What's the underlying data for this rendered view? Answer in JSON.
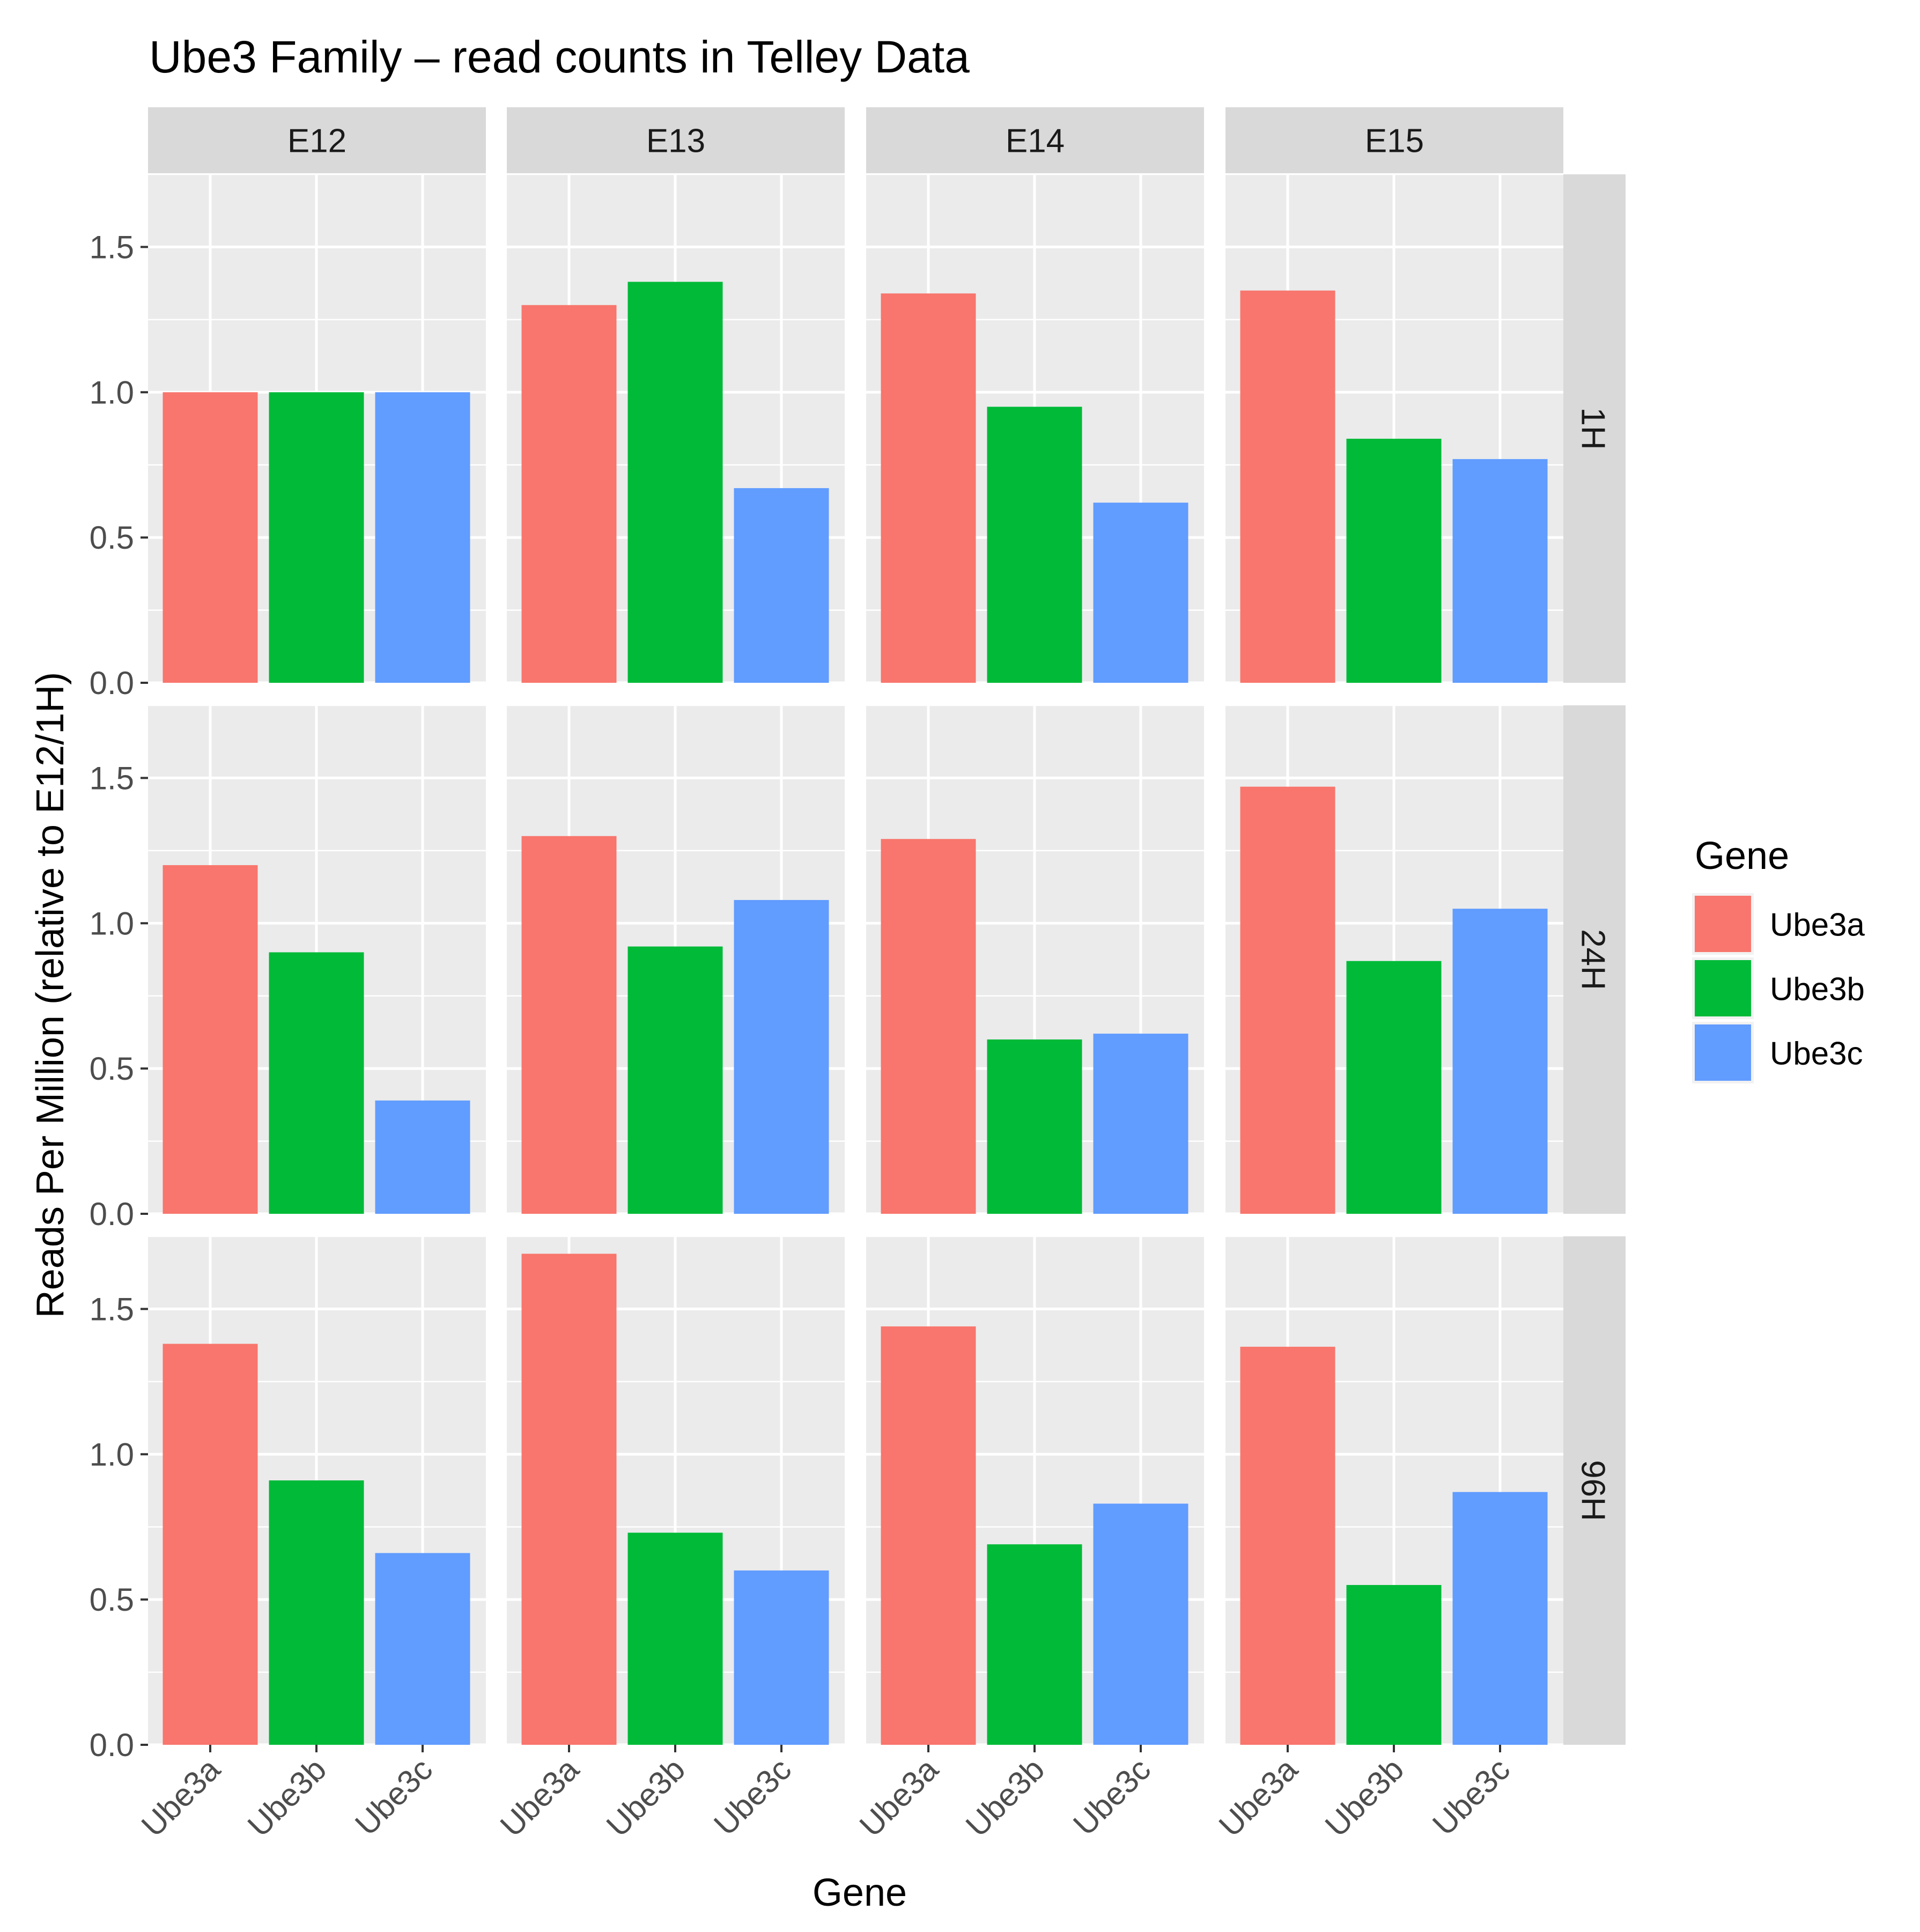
{
  "chart_data": {
    "type": "bar",
    "title": "Ube3 Family – read counts in Telley Data",
    "xlabel": "Gene",
    "ylabel": "Reads Per Million (relative to E12/1H)",
    "ylim": [
      0,
      1.75
    ],
    "y_ticks": [
      "0.0",
      "0.5",
      "1.0",
      "1.5"
    ],
    "grid": true,
    "legend_position": "right",
    "legend": {
      "title": "Gene",
      "entries": [
        "Ube3a",
        "Ube3b",
        "Ube3c"
      ]
    },
    "categories": [
      "Ube3a",
      "Ube3b",
      "Ube3c"
    ],
    "colors": {
      "Ube3a": "#F8766D",
      "Ube3b": "#00BA38",
      "Ube3c": "#619CFF"
    },
    "facet_columns": [
      "E12",
      "E13",
      "E14",
      "E15"
    ],
    "facet_rows": [
      "1H",
      "24H",
      "96H"
    ],
    "panels": [
      {
        "row": "1H",
        "col": "E12",
        "values": [
          1.0,
          1.0,
          1.0
        ]
      },
      {
        "row": "1H",
        "col": "E13",
        "values": [
          1.3,
          1.38,
          0.67
        ]
      },
      {
        "row": "1H",
        "col": "E14",
        "values": [
          1.34,
          0.95,
          0.62
        ]
      },
      {
        "row": "1H",
        "col": "E15",
        "values": [
          1.35,
          0.84,
          0.77
        ]
      },
      {
        "row": "24H",
        "col": "E12",
        "values": [
          1.2,
          0.9,
          0.39
        ]
      },
      {
        "row": "24H",
        "col": "E13",
        "values": [
          1.3,
          0.92,
          1.08
        ]
      },
      {
        "row": "24H",
        "col": "E14",
        "values": [
          1.29,
          0.6,
          0.62
        ]
      },
      {
        "row": "24H",
        "col": "E15",
        "values": [
          1.47,
          0.87,
          1.05
        ]
      },
      {
        "row": "96H",
        "col": "E12",
        "values": [
          1.38,
          0.91,
          0.66
        ]
      },
      {
        "row": "96H",
        "col": "E13",
        "values": [
          1.69,
          0.73,
          0.6
        ]
      },
      {
        "row": "96H",
        "col": "E14",
        "values": [
          1.44,
          0.69,
          0.83
        ]
      },
      {
        "row": "96H",
        "col": "E15",
        "values": [
          1.37,
          0.55,
          0.87
        ]
      }
    ]
  }
}
